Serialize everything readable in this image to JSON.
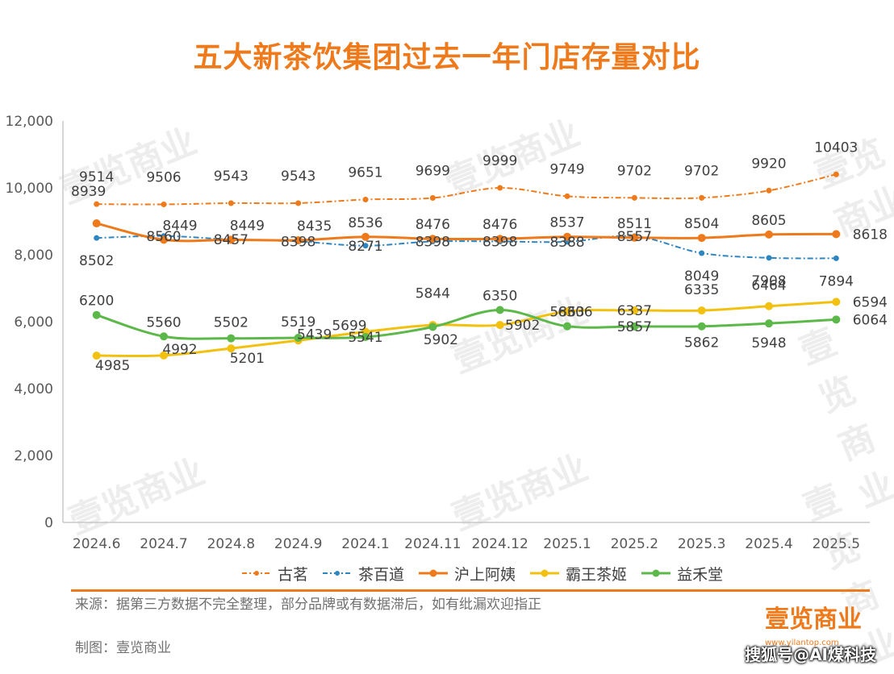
{
  "title": "五大新茶饮集团过去一年门店存量对比",
  "footer": {
    "source": "来源：据第三方数据不完全整理，部分品牌或有数据滞后，如有纰漏欢迎指正",
    "credit": "制图：壹览商业"
  },
  "branding": {
    "logo_text": "壹览商业",
    "url": "www.yilantop.com",
    "watermark": "壹览商业"
  },
  "attribution": "搜狐号@AI煤科技",
  "colors": {
    "orange": "#ee7a1c",
    "blue": "#2e86c1",
    "yellow": "#f2c00e",
    "green": "#5cb848"
  },
  "chart_data": {
    "type": "line",
    "title": "五大新茶饮集团过去一年门店存量对比",
    "categories": [
      "2024.6",
      "2024.7",
      "2024.8",
      "2024.9",
      "2024.1",
      "2024.11",
      "2024.12",
      "2025.1",
      "2025.2",
      "2025.3",
      "2025.4",
      "2025.5"
    ],
    "ylim": [
      0,
      12000
    ],
    "yticks": [
      "0",
      "2,000",
      "4,000",
      "6,000",
      "8,000",
      "10,000",
      "12,000"
    ],
    "grid": false,
    "legend_position": "bottom",
    "series": [
      {
        "name": "古茗",
        "color": "#ee7a1c",
        "style": "dashdot",
        "values": [
          9514,
          9506,
          9543,
          9543,
          9651,
          9699,
          9999,
          9749,
          9702,
          9702,
          9920,
          10403
        ]
      },
      {
        "name": "茶百道",
        "color": "#2e86c1",
        "style": "dashdot",
        "values": [
          8502,
          8560,
          8457,
          8398,
          8271,
          8398,
          8398,
          8388,
          8557,
          8049,
          7908,
          7894
        ]
      },
      {
        "name": "沪上阿姨",
        "color": "#ee7a1c",
        "style": "solid",
        "values": [
          8939,
          8449,
          8449,
          8435,
          8536,
          8476,
          8476,
          8537,
          8511,
          8504,
          8605,
          8618
        ]
      },
      {
        "name": "霸王茶姬",
        "color": "#f2c00e",
        "style": "solid",
        "values": [
          4985,
          4992,
          5201,
          5439,
          5699,
          5902,
          5902,
          6306,
          6337,
          6335,
          6464,
          6594
        ]
      },
      {
        "name": "益禾堂",
        "color": "#5cb848",
        "style": "solid",
        "values": [
          6200,
          5560,
          5502,
          5519,
          5541,
          5844,
          6350,
          5863,
          5857,
          5862,
          5948,
          6064
        ]
      }
    ]
  }
}
